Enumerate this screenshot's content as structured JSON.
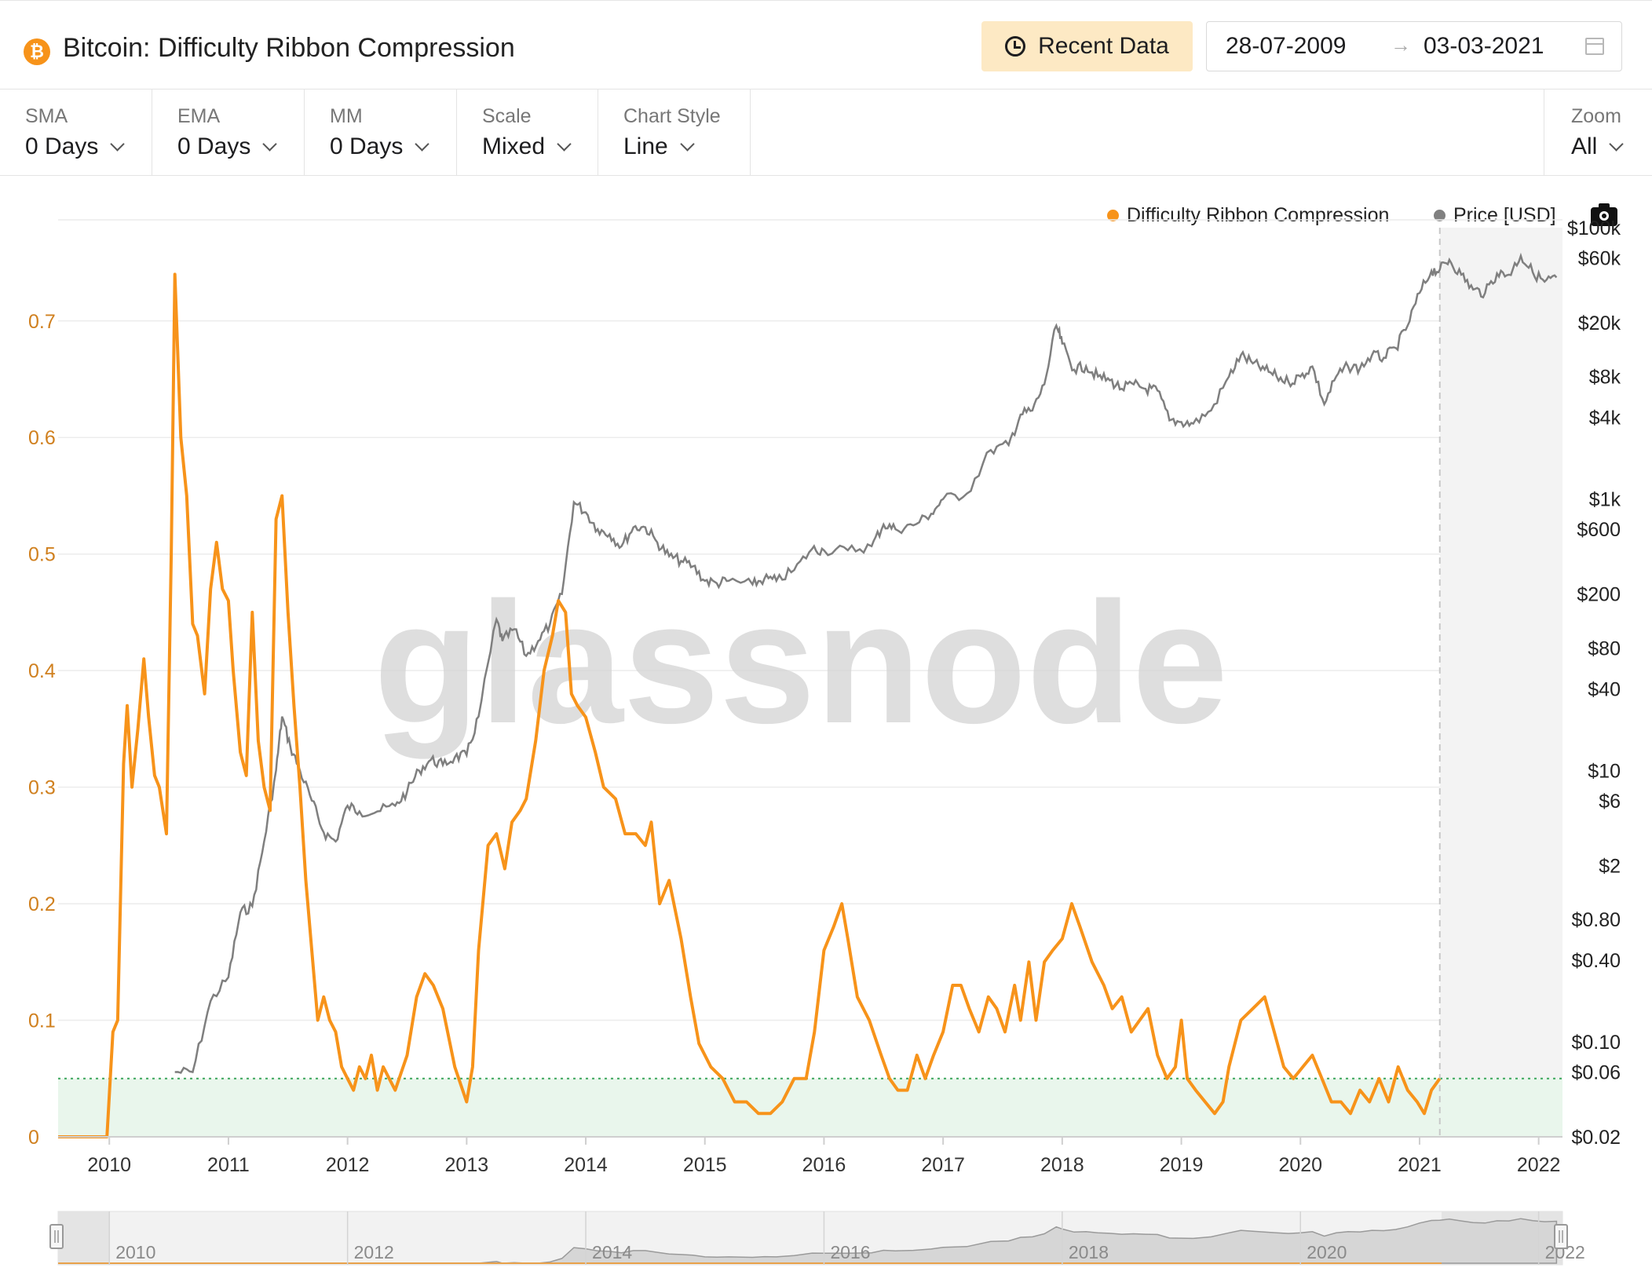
{
  "header": {
    "asset_symbol": "₿",
    "title": "Bitcoin: Difficulty Ribbon Compression",
    "recent_label": "Recent Data",
    "date_from": "28-07-2009",
    "date_arrow": "→",
    "date_to": "03-03-2021"
  },
  "controls": [
    {
      "label": "SMA",
      "value": "0 Days"
    },
    {
      "label": "EMA",
      "value": "0 Days"
    },
    {
      "label": "MM",
      "value": "0 Days"
    },
    {
      "label": "Scale",
      "value": "Mixed"
    },
    {
      "label": "Chart Style",
      "value": "Line"
    }
  ],
  "zoom": {
    "label": "Zoom",
    "value": "All"
  },
  "legend": [
    {
      "label": "Difficulty Ribbon Compression",
      "color": "#f7931a"
    },
    {
      "label": "Price [USD]",
      "color": "#808080"
    }
  ],
  "watermark": "glassnode",
  "colors": {
    "accent": "#f7931a",
    "price": "#7f7f7f",
    "zone": "#e9f6ec",
    "zone_line": "#3aa65b",
    "axis_left": "#d0801f"
  },
  "chart_data": {
    "type": "line",
    "title": "Bitcoin: Difficulty Ribbon Compression",
    "x_range": [
      2009.57,
      2022.2
    ],
    "x_ticks": [
      "2010",
      "2011",
      "2012",
      "2013",
      "2014",
      "2015",
      "2016",
      "2017",
      "2018",
      "2019",
      "2020",
      "2021",
      "2022"
    ],
    "left_axis": {
      "ticks": [
        "0",
        "0.1",
        "0.2",
        "0.3",
        "0.4",
        "0.5",
        "0.6",
        "0.7"
      ],
      "range": [
        0,
        0.78
      ]
    },
    "right_axis": {
      "scale": "log",
      "ticks": [
        "$0.02",
        "$0.06",
        "$0.10",
        "$0.40",
        "$0.80",
        "$2",
        "$6",
        "$10",
        "$40",
        "$80",
        "$200",
        "$600",
        "$1k",
        "$4k",
        "$8k",
        "$20k",
        "$60k",
        "$100k"
      ],
      "range": [
        0.02,
        100000
      ]
    },
    "threshold": 0.05,
    "forecast_start": 2021.17,
    "navigator_ticks": [
      "2010",
      "2012",
      "2014",
      "2016",
      "2018",
      "2020",
      "2022"
    ],
    "series": [
      {
        "name": "Difficulty Ribbon Compression",
        "axis": "left",
        "points": [
          [
            2009.57,
            0
          ],
          [
            2009.98,
            0
          ],
          [
            2010.03,
            0.09
          ],
          [
            2010.07,
            0.1
          ],
          [
            2010.12,
            0.32
          ],
          [
            2010.15,
            0.37
          ],
          [
            2010.19,
            0.3
          ],
          [
            2010.24,
            0.35
          ],
          [
            2010.29,
            0.41
          ],
          [
            2010.33,
            0.36
          ],
          [
            2010.38,
            0.31
          ],
          [
            2010.42,
            0.3
          ],
          [
            2010.48,
            0.26
          ],
          [
            2010.52,
            0.5
          ],
          [
            2010.55,
            0.74
          ],
          [
            2010.6,
            0.6
          ],
          [
            2010.65,
            0.55
          ],
          [
            2010.7,
            0.44
          ],
          [
            2010.74,
            0.43
          ],
          [
            2010.8,
            0.38
          ],
          [
            2010.85,
            0.47
          ],
          [
            2010.9,
            0.51
          ],
          [
            2010.95,
            0.47
          ],
          [
            2011.0,
            0.46
          ],
          [
            2011.04,
            0.4
          ],
          [
            2011.1,
            0.33
          ],
          [
            2011.15,
            0.31
          ],
          [
            2011.2,
            0.45
          ],
          [
            2011.25,
            0.34
          ],
          [
            2011.3,
            0.3
          ],
          [
            2011.35,
            0.28
          ],
          [
            2011.4,
            0.53
          ],
          [
            2011.45,
            0.55
          ],
          [
            2011.5,
            0.45
          ],
          [
            2011.55,
            0.37
          ],
          [
            2011.6,
            0.3
          ],
          [
            2011.65,
            0.22
          ],
          [
            2011.7,
            0.16
          ],
          [
            2011.75,
            0.1
          ],
          [
            2011.8,
            0.12
          ],
          [
            2011.85,
            0.1
          ],
          [
            2011.9,
            0.09
          ],
          [
            2011.95,
            0.06
          ],
          [
            2012.0,
            0.05
          ],
          [
            2012.05,
            0.04
          ],
          [
            2012.1,
            0.06
          ],
          [
            2012.15,
            0.05
          ],
          [
            2012.2,
            0.07
          ],
          [
            2012.25,
            0.04
          ],
          [
            2012.3,
            0.06
          ],
          [
            2012.35,
            0.05
          ],
          [
            2012.4,
            0.04
          ],
          [
            2012.5,
            0.07
          ],
          [
            2012.58,
            0.12
          ],
          [
            2012.65,
            0.14
          ],
          [
            2012.72,
            0.13
          ],
          [
            2012.8,
            0.11
          ],
          [
            2012.9,
            0.06
          ],
          [
            2013.0,
            0.03
          ],
          [
            2013.05,
            0.06
          ],
          [
            2013.1,
            0.16
          ],
          [
            2013.18,
            0.25
          ],
          [
            2013.25,
            0.26
          ],
          [
            2013.32,
            0.23
          ],
          [
            2013.38,
            0.27
          ],
          [
            2013.45,
            0.28
          ],
          [
            2013.5,
            0.29
          ],
          [
            2013.58,
            0.34
          ],
          [
            2013.65,
            0.4
          ],
          [
            2013.72,
            0.43
          ],
          [
            2013.77,
            0.46
          ],
          [
            2013.83,
            0.45
          ],
          [
            2013.88,
            0.38
          ],
          [
            2013.93,
            0.37
          ],
          [
            2014.0,
            0.36
          ],
          [
            2014.08,
            0.33
          ],
          [
            2014.15,
            0.3
          ],
          [
            2014.25,
            0.29
          ],
          [
            2014.33,
            0.26
          ],
          [
            2014.42,
            0.26
          ],
          [
            2014.5,
            0.25
          ],
          [
            2014.55,
            0.27
          ],
          [
            2014.62,
            0.2
          ],
          [
            2014.7,
            0.22
          ],
          [
            2014.8,
            0.17
          ],
          [
            2014.88,
            0.12
          ],
          [
            2014.95,
            0.08
          ],
          [
            2015.05,
            0.06
          ],
          [
            2015.15,
            0.05
          ],
          [
            2015.25,
            0.03
          ],
          [
            2015.35,
            0.03
          ],
          [
            2015.45,
            0.02
          ],
          [
            2015.55,
            0.02
          ],
          [
            2015.65,
            0.03
          ],
          [
            2015.75,
            0.05
          ],
          [
            2015.85,
            0.05
          ],
          [
            2015.92,
            0.09
          ],
          [
            2016.0,
            0.16
          ],
          [
            2016.08,
            0.18
          ],
          [
            2016.15,
            0.2
          ],
          [
            2016.2,
            0.17
          ],
          [
            2016.28,
            0.12
          ],
          [
            2016.38,
            0.1
          ],
          [
            2016.48,
            0.07
          ],
          [
            2016.55,
            0.05
          ],
          [
            2016.62,
            0.04
          ],
          [
            2016.7,
            0.04
          ],
          [
            2016.78,
            0.07
          ],
          [
            2016.85,
            0.05
          ],
          [
            2016.92,
            0.07
          ],
          [
            2017.0,
            0.09
          ],
          [
            2017.08,
            0.13
          ],
          [
            2017.15,
            0.13
          ],
          [
            2017.22,
            0.11
          ],
          [
            2017.3,
            0.09
          ],
          [
            2017.38,
            0.12
          ],
          [
            2017.45,
            0.11
          ],
          [
            2017.52,
            0.09
          ],
          [
            2017.6,
            0.13
          ],
          [
            2017.65,
            0.1
          ],
          [
            2017.72,
            0.15
          ],
          [
            2017.78,
            0.1
          ],
          [
            2017.85,
            0.15
          ],
          [
            2017.92,
            0.16
          ],
          [
            2018.0,
            0.17
          ],
          [
            2018.08,
            0.2
          ],
          [
            2018.15,
            0.18
          ],
          [
            2018.25,
            0.15
          ],
          [
            2018.35,
            0.13
          ],
          [
            2018.42,
            0.11
          ],
          [
            2018.5,
            0.12
          ],
          [
            2018.58,
            0.09
          ],
          [
            2018.65,
            0.1
          ],
          [
            2018.72,
            0.11
          ],
          [
            2018.8,
            0.07
          ],
          [
            2018.88,
            0.05
          ],
          [
            2018.95,
            0.06
          ],
          [
            2019.0,
            0.1
          ],
          [
            2019.05,
            0.05
          ],
          [
            2019.12,
            0.04
          ],
          [
            2019.2,
            0.03
          ],
          [
            2019.28,
            0.02
          ],
          [
            2019.35,
            0.03
          ],
          [
            2019.4,
            0.06
          ],
          [
            2019.5,
            0.1
          ],
          [
            2019.6,
            0.11
          ],
          [
            2019.7,
            0.12
          ],
          [
            2019.78,
            0.09
          ],
          [
            2019.86,
            0.06
          ],
          [
            2019.94,
            0.05
          ],
          [
            2020.02,
            0.06
          ],
          [
            2020.1,
            0.07
          ],
          [
            2020.18,
            0.05
          ],
          [
            2020.26,
            0.03
          ],
          [
            2020.34,
            0.03
          ],
          [
            2020.42,
            0.02
          ],
          [
            2020.5,
            0.04
          ],
          [
            2020.58,
            0.03
          ],
          [
            2020.66,
            0.05
          ],
          [
            2020.74,
            0.03
          ],
          [
            2020.82,
            0.06
          ],
          [
            2020.9,
            0.04
          ],
          [
            2020.98,
            0.03
          ],
          [
            2021.04,
            0.02
          ],
          [
            2021.1,
            0.04
          ],
          [
            2021.17,
            0.05
          ]
        ]
      },
      {
        "name": "Price [USD]",
        "axis": "right",
        "points": [
          [
            2010.55,
            0.06
          ],
          [
            2010.7,
            0.06
          ],
          [
            2010.85,
            0.2
          ],
          [
            2011.0,
            0.3
          ],
          [
            2011.1,
            0.9
          ],
          [
            2011.2,
            1.0
          ],
          [
            2011.3,
            3.0
          ],
          [
            2011.4,
            10
          ],
          [
            2011.45,
            25
          ],
          [
            2011.52,
            15
          ],
          [
            2011.6,
            10
          ],
          [
            2011.7,
            6
          ],
          [
            2011.8,
            3.5
          ],
          [
            2011.9,
            3.0
          ],
          [
            2012.0,
            5.5
          ],
          [
            2012.1,
            5.0
          ],
          [
            2012.25,
            5.0
          ],
          [
            2012.4,
            5.5
          ],
          [
            2012.5,
            7.0
          ],
          [
            2012.6,
            10
          ],
          [
            2012.7,
            12
          ],
          [
            2012.8,
            11
          ],
          [
            2012.9,
            12.5
          ],
          [
            2013.0,
            13
          ],
          [
            2013.1,
            25
          ],
          [
            2013.25,
            130
          ],
          [
            2013.3,
            90
          ],
          [
            2013.4,
            110
          ],
          [
            2013.5,
            70
          ],
          [
            2013.6,
            90
          ],
          [
            2013.7,
            120
          ],
          [
            2013.8,
            200
          ],
          [
            2013.9,
            950
          ],
          [
            2014.0,
            800
          ],
          [
            2014.1,
            600
          ],
          [
            2014.2,
            550
          ],
          [
            2014.3,
            450
          ],
          [
            2014.4,
            620
          ],
          [
            2014.5,
            620
          ],
          [
            2014.6,
            480
          ],
          [
            2014.7,
            380
          ],
          [
            2014.8,
            350
          ],
          [
            2014.9,
            320
          ],
          [
            2015.0,
            250
          ],
          [
            2015.1,
            240
          ],
          [
            2015.2,
            250
          ],
          [
            2015.4,
            235
          ],
          [
            2015.5,
            260
          ],
          [
            2015.6,
            250
          ],
          [
            2015.75,
            300
          ],
          [
            2015.9,
            430
          ],
          [
            2016.0,
            420
          ],
          [
            2016.2,
            420
          ],
          [
            2016.4,
            450
          ],
          [
            2016.5,
            650
          ],
          [
            2016.6,
            600
          ],
          [
            2016.75,
            640
          ],
          [
            2016.9,
            780
          ],
          [
            2017.0,
            1000
          ],
          [
            2017.2,
            1100
          ],
          [
            2017.4,
            2300
          ],
          [
            2017.55,
            2500
          ],
          [
            2017.65,
            4200
          ],
          [
            2017.75,
            4500
          ],
          [
            2017.85,
            7000
          ],
          [
            2017.95,
            19000
          ],
          [
            2018.0,
            14000
          ],
          [
            2018.1,
            9000
          ],
          [
            2018.2,
            9500
          ],
          [
            2018.3,
            8000
          ],
          [
            2018.4,
            7500
          ],
          [
            2018.5,
            6500
          ],
          [
            2018.6,
            7000
          ],
          [
            2018.7,
            6500
          ],
          [
            2018.8,
            6300
          ],
          [
            2018.9,
            3800
          ],
          [
            2019.0,
            3700
          ],
          [
            2019.1,
            3600
          ],
          [
            2019.25,
            4500
          ],
          [
            2019.4,
            8000
          ],
          [
            2019.5,
            11500
          ],
          [
            2019.6,
            10000
          ],
          [
            2019.7,
            9000
          ],
          [
            2019.8,
            8000
          ],
          [
            2019.9,
            7300
          ],
          [
            2020.0,
            8000
          ],
          [
            2020.1,
            9500
          ],
          [
            2020.2,
            5000
          ],
          [
            2020.3,
            8000
          ],
          [
            2020.4,
            9500
          ],
          [
            2020.5,
            9200
          ],
          [
            2020.6,
            11500
          ],
          [
            2020.7,
            11000
          ],
          [
            2020.8,
            13000
          ],
          [
            2020.9,
            19000
          ],
          [
            2021.0,
            33000
          ],
          [
            2021.1,
            48000
          ],
          [
            2021.17,
            49000
          ],
          [
            2021.25,
            58000
          ],
          [
            2021.35,
            45000
          ],
          [
            2021.45,
            35000
          ],
          [
            2021.55,
            33000
          ],
          [
            2021.65,
            46000
          ],
          [
            2021.75,
            45000
          ],
          [
            2021.85,
            62000
          ],
          [
            2021.95,
            47000
          ],
          [
            2022.05,
            40000
          ],
          [
            2022.15,
            43000
          ]
        ]
      }
    ]
  }
}
